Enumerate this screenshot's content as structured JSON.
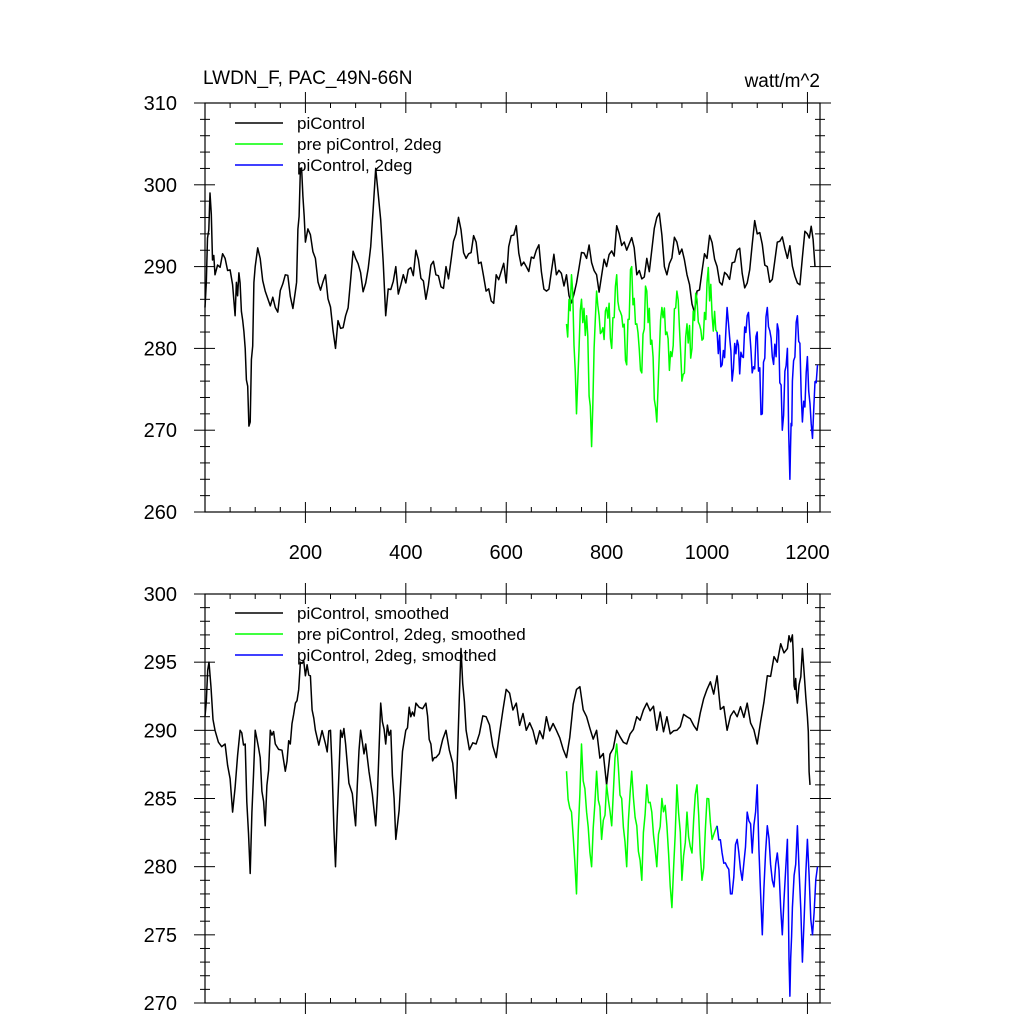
{
  "chart_data": [
    {
      "type": "line",
      "title": "LWDN_F, PAC_49N-66N",
      "units": "watt/m^2",
      "xlim": [
        0,
        1225
      ],
      "ylim": [
        260,
        310
      ],
      "xticks": [
        200,
        400,
        600,
        800,
        1000,
        1200
      ],
      "xtick_labels": [
        "200",
        "400",
        "600",
        "800",
        "1000",
        "1200"
      ],
      "yticks": [
        260,
        270,
        280,
        290,
        300,
        310
      ],
      "ytick_labels": [
        "260",
        "270",
        "280",
        "290",
        "300",
        "310"
      ],
      "legend": [
        "piControl",
        "pre piControl, 2deg",
        "piControl, 2deg"
      ],
      "legend_position": "top-left",
      "series": [
        {
          "name": "piControl",
          "color": "#000000",
          "x": [
            0,
            10,
            20,
            40,
            60,
            70,
            80,
            90,
            100,
            120,
            140,
            160,
            180,
            190,
            200,
            220,
            240,
            260,
            280,
            300,
            320,
            340,
            360,
            380,
            400,
            420,
            440,
            460,
            480,
            500,
            520,
            540,
            560,
            580,
            600,
            620,
            640,
            660,
            680,
            700,
            720,
            740,
            760,
            780,
            800,
            820,
            840,
            860,
            880,
            900,
            920,
            940,
            960,
            980,
            1000,
            1020,
            1040,
            1060,
            1080,
            1100,
            1120,
            1140,
            1160,
            1180,
            1200,
            1215
          ],
          "y": [
            285,
            299,
            289,
            291,
            284,
            288,
            280,
            271,
            290,
            287,
            285,
            289,
            287,
            302,
            293,
            291,
            289,
            280,
            284,
            291,
            288,
            302,
            284,
            290,
            288,
            292,
            286,
            289,
            290,
            294,
            291,
            293,
            287,
            289,
            288,
            295,
            290,
            292,
            287,
            289,
            289,
            288,
            291,
            289,
            290,
            295,
            292,
            289,
            291,
            296,
            289,
            293,
            289,
            287,
            291,
            290,
            289,
            292,
            288,
            294,
            290,
            293,
            291,
            288,
            294,
            290
          ]
        },
        {
          "name": "pre piControl, 2deg",
          "color": "#00ff00",
          "x": [
            720,
            730,
            740,
            750,
            760,
            770,
            780,
            790,
            800,
            810,
            820,
            830,
            840,
            850,
            860,
            870,
            880,
            890,
            900,
            910,
            920,
            930,
            940,
            950,
            960,
            970,
            980,
            990,
            1000,
            1010,
            1020
          ],
          "y": [
            283,
            289,
            272,
            286,
            284,
            268,
            287,
            282,
            285,
            280,
            289,
            284,
            278,
            290,
            283,
            277,
            287,
            281,
            271,
            285,
            282,
            279,
            287,
            276,
            283,
            280,
            286,
            281,
            288,
            284,
            282
          ]
        },
        {
          "name": "piControl, 2deg",
          "color": "#0000ff",
          "x": [
            1020,
            1030,
            1040,
            1050,
            1060,
            1070,
            1080,
            1090,
            1100,
            1110,
            1120,
            1130,
            1140,
            1150,
            1160,
            1165,
            1170,
            1180,
            1190,
            1200,
            1210,
            1220
          ],
          "y": [
            282,
            278,
            285,
            276,
            281,
            279,
            284,
            277,
            282,
            272,
            285,
            279,
            283,
            270,
            280,
            264,
            276,
            284,
            271,
            279,
            269,
            278
          ]
        }
      ]
    },
    {
      "type": "line",
      "title": "",
      "xlim": [
        0,
        1225
      ],
      "ylim": [
        270,
        300
      ],
      "xticks": [
        200,
        400,
        600,
        800,
        1000,
        1200
      ],
      "yticks": [
        270,
        275,
        280,
        285,
        290,
        295,
        300
      ],
      "ytick_labels": [
        "270",
        "275",
        "280",
        "285",
        "290",
        "295",
        "300"
      ],
      "legend": [
        "piControl, smoothed",
        "pre piControl, 2deg, smoothed",
        "piControl, 2deg, smoothed"
      ],
      "legend_position": "top-left",
      "series": [
        {
          "name": "piControl, smoothed",
          "color": "#000000",
          "x": [
            0,
            8,
            20,
            40,
            55,
            70,
            80,
            90,
            100,
            110,
            120,
            130,
            140,
            160,
            170,
            180,
            190,
            200,
            210,
            220,
            240,
            250,
            260,
            270,
            280,
            300,
            310,
            320,
            340,
            350,
            360,
            370,
            380,
            400,
            410,
            420,
            440,
            450,
            460,
            480,
            500,
            510,
            520,
            540,
            560,
            580,
            600,
            620,
            640,
            660,
            680,
            700,
            720,
            740,
            760,
            780,
            800,
            820,
            840,
            860,
            880,
            900,
            920,
            940,
            960,
            980,
            1000,
            1020,
            1040,
            1060,
            1080,
            1100,
            1120,
            1140,
            1160,
            1170,
            1175,
            1180,
            1190,
            1200,
            1205
          ],
          "y": [
            291,
            295,
            290,
            289,
            284,
            290,
            289,
            279.5,
            290,
            288,
            283,
            290,
            289,
            287,
            289,
            292,
            295,
            294,
            294,
            290,
            289,
            290,
            280,
            290,
            289,
            283,
            290,
            289,
            283,
            292,
            289,
            290,
            282,
            290,
            291,
            292,
            292,
            289,
            288,
            290,
            285,
            296,
            290,
            289,
            291,
            288,
            293,
            292,
            290,
            289,
            291,
            290,
            288,
            293,
            291,
            290,
            286,
            290,
            289,
            291,
            292,
            290,
            291,
            290,
            291,
            290,
            293,
            294,
            290,
            291,
            292,
            289,
            294,
            295,
            296,
            297,
            293,
            292,
            296,
            291,
            286
          ]
        },
        {
          "name": "pre piControl, 2deg, smoothed",
          "color": "#00ff00",
          "x": [
            720,
            730,
            740,
            750,
            760,
            770,
            780,
            790,
            800,
            810,
            820,
            830,
            840,
            850,
            860,
            870,
            880,
            890,
            900,
            910,
            920,
            930,
            940,
            950,
            960,
            970,
            980,
            990,
            1000,
            1010,
            1020
          ],
          "y": [
            287,
            284,
            278,
            289,
            284,
            280,
            287,
            282,
            286,
            283,
            289,
            285,
            280,
            287,
            283,
            279,
            286,
            284,
            280,
            285,
            283,
            277,
            286,
            279,
            284,
            281,
            286,
            279,
            285,
            282,
            283
          ]
        },
        {
          "name": "piControl, 2deg, smoothed",
          "color": "#0000ff",
          "x": [
            1020,
            1030,
            1040,
            1050,
            1060,
            1070,
            1080,
            1090,
            1100,
            1110,
            1120,
            1130,
            1140,
            1150,
            1160,
            1165,
            1170,
            1180,
            1190,
            1200,
            1210,
            1220
          ],
          "y": [
            283,
            281,
            280,
            278,
            282,
            279,
            284,
            281,
            286,
            275,
            283,
            279,
            281,
            275,
            282,
            270.5,
            277,
            283,
            273,
            282,
            275,
            280
          ]
        }
      ]
    }
  ]
}
